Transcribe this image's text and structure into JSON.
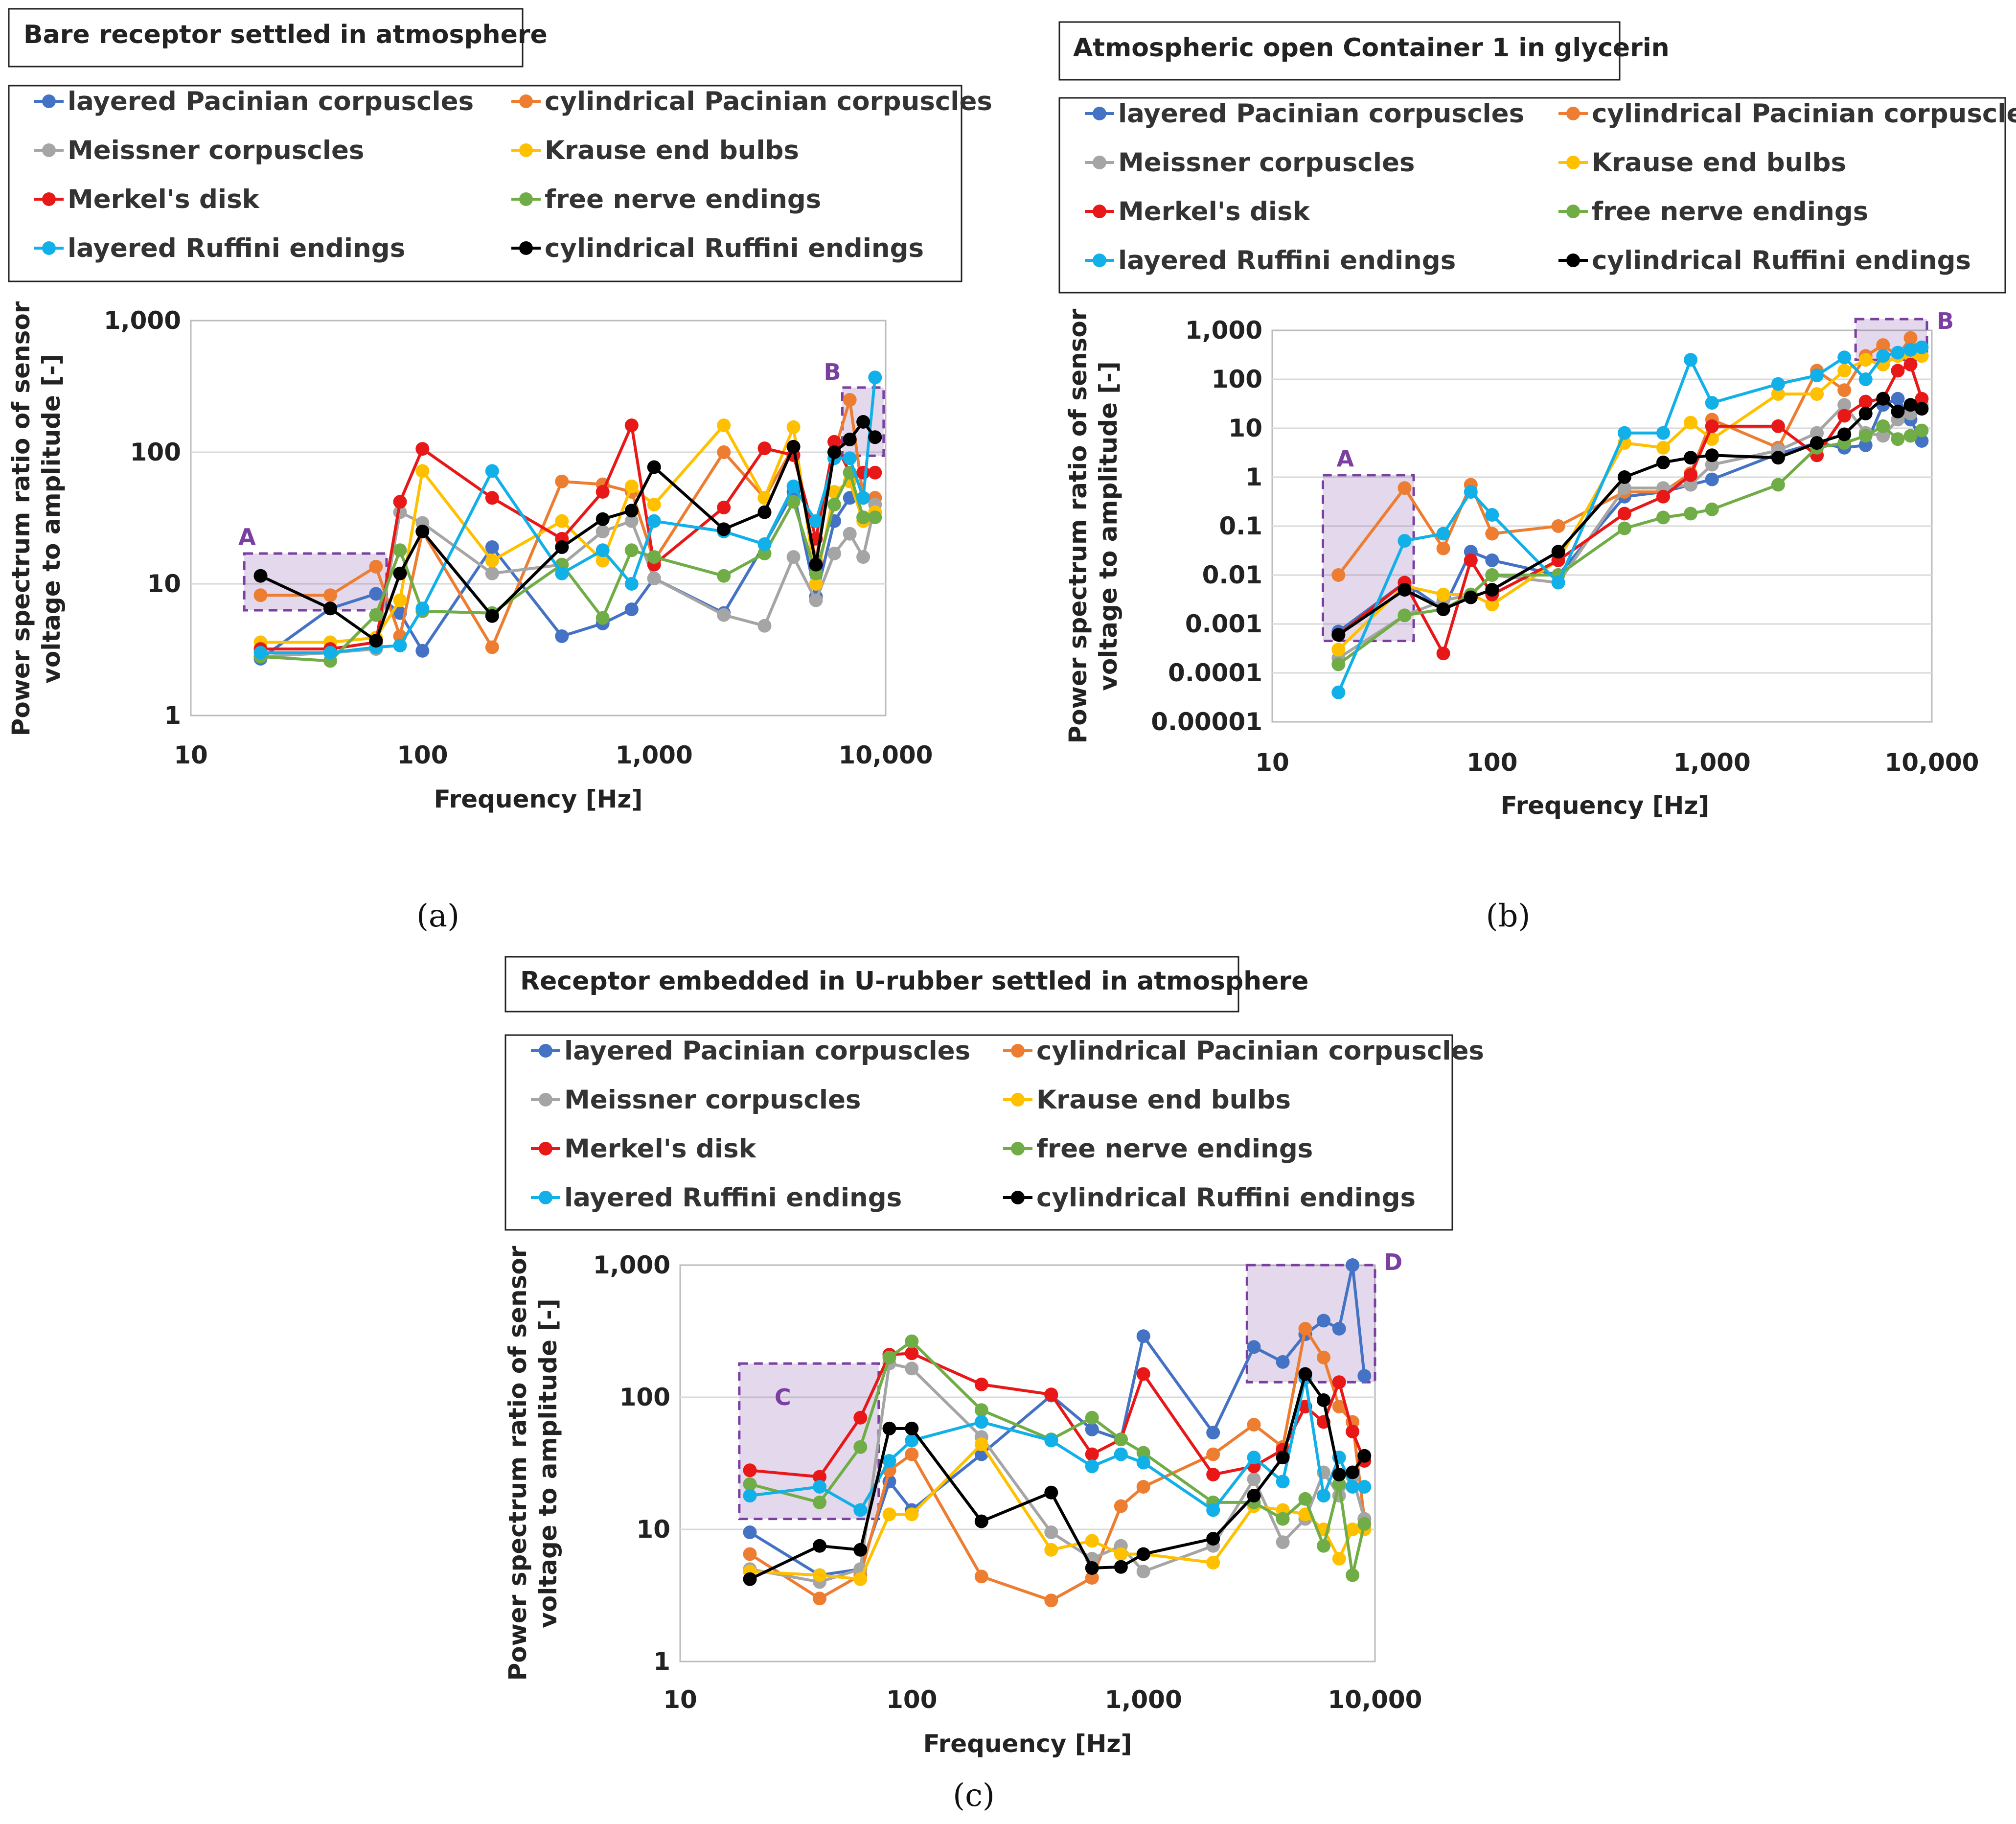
{
  "figure": {
    "panel_labels": [
      "(a)",
      "(b)",
      "(c)"
    ]
  },
  "legend_entries": [
    {
      "name": "layered Pacinian corpuscles",
      "color": "#4472c4"
    },
    {
      "name": "cylindrical Pacinian corpuscles",
      "color": "#ed7d31"
    },
    {
      "name": "Meissner corpuscles",
      "color": "#a5a5a5"
    },
    {
      "name": "Krause end bulbs",
      "color": "#ffc000"
    },
    {
      "name": "Merkel's disk",
      "color": "#e81818"
    },
    {
      "name": "free nerve endings",
      "color": "#70ad47"
    },
    {
      "name": "layered Ruffini endings",
      "color": "#12b0e8"
    },
    {
      "name": "cylindrical Ruffini endings",
      "color": "#000000"
    }
  ],
  "chart_data": [
    {
      "type": "line",
      "panel": "(a)",
      "title": "Bare receptor settled in atmosphere",
      "xlabel": "Frequency   [Hz]",
      "ylabel": "Power spectrum ratio of sensor voltage to amplitude [-]",
      "xscale": "log",
      "yscale": "log",
      "xlim": [
        10,
        10000
      ],
      "ylim": [
        1,
        1000
      ],
      "x_ticks": [
        "10",
        "100",
        "1,000",
        "10,000"
      ],
      "y_ticks": [
        "1",
        "10",
        "100",
        "1,000"
      ],
      "x": [
        20,
        40,
        63,
        80,
        100,
        200,
        400,
        600,
        800,
        1000,
        2000,
        3000,
        4000,
        5000,
        6000,
        7000,
        8000,
        9000
      ],
      "series": [
        {
          "name": "layered Pacinian corpuscles",
          "values": [
            2.7,
            6.5,
            8.4,
            6.0,
            3.1,
            19,
            4.0,
            5.0,
            6.4,
            11,
            6.0,
            20,
            50,
            8.0,
            30,
            45,
            45,
            45
          ]
        },
        {
          "name": "cylindrical Pacinian corpuscles",
          "values": [
            8.2,
            8.2,
            13.5,
            4.0,
            25,
            3.3,
            60,
            57,
            50,
            15,
            100,
            45,
            110,
            15,
            100,
            250,
            45,
            45
          ]
        },
        {
          "name": "Meissner corpuscles",
          "values": [
            2.8,
            3.0,
            3.2,
            35,
            29,
            12,
            14,
            25,
            30,
            11,
            5.8,
            4.8,
            16,
            7.5,
            17,
            24,
            16,
            40
          ]
        },
        {
          "name": "Krause end bulbs",
          "values": [
            3.6,
            3.6,
            3.9,
            7.5,
            72,
            15,
            30,
            15,
            55,
            40,
            160,
            45,
            155,
            10,
            50,
            60,
            30,
            35
          ]
        },
        {
          "name": "Merkel's disk",
          "values": [
            3.2,
            3.2,
            3.6,
            42,
            106,
            45,
            22,
            50,
            160,
            14,
            38,
            107,
            95,
            22,
            120,
            70,
            70,
            70
          ]
        },
        {
          "name": "free nerve endings",
          "values": [
            2.8,
            2.6,
            5.8,
            18,
            6.2,
            6.0,
            14,
            5.5,
            18,
            16,
            11.5,
            17,
            42,
            12,
            40,
            70,
            32,
            32
          ]
        },
        {
          "name": "layered Ruffini endings",
          "values": [
            3.0,
            3.0,
            3.3,
            3.4,
            6.5,
            72,
            12,
            18,
            10,
            30,
            25,
            20,
            55,
            30,
            90,
            90,
            45,
            370
          ]
        },
        {
          "name": "cylindrical Ruffini endings",
          "values": [
            11.5,
            6.5,
            3.7,
            12,
            25,
            5.7,
            19,
            31,
            36,
            77,
            26,
            35,
            110,
            14,
            100,
            125,
            170,
            130
          ]
        }
      ],
      "regions": [
        {
          "label": "A",
          "x_range": [
            17,
            70
          ],
          "y_range": [
            6.3,
            17
          ]
        },
        {
          "label": "B",
          "x_range": [
            6500,
            9800
          ],
          "y_range": [
            94,
            310
          ]
        }
      ]
    },
    {
      "type": "line",
      "panel": "(b)",
      "title": "Atmospheric open Container 1 in glycerin",
      "xlabel": "Frequency   [Hz]",
      "ylabel": "Power spectrum ratio of sensor voltage to amplitude [-]",
      "xscale": "log",
      "yscale": "log",
      "xlim": [
        10,
        10000
      ],
      "ylim": [
        1e-05,
        1000
      ],
      "x_ticks": [
        "10",
        "100",
        "1,000",
        "10,000"
      ],
      "y_ticks": [
        "0.00001",
        "0.0001",
        "0.001",
        "0.01",
        "0.1",
        "1",
        "10",
        "100",
        "1,000"
      ],
      "x": [
        20,
        40,
        60,
        80,
        100,
        200,
        400,
        600,
        800,
        1000,
        2000,
        3000,
        4000,
        5000,
        6000,
        7000,
        8000,
        9000
      ],
      "series": [
        {
          "name": "layered Pacinian corpuscles",
          "values": [
            0.0007,
            0.007,
            0.002,
            0.03,
            0.02,
            0.01,
            0.4,
            0.5,
            0.7,
            0.9,
            3,
            5,
            4,
            4.5,
            30,
            40,
            15,
            5.5
          ]
        },
        {
          "name": "cylindrical Pacinian corpuscles",
          "values": [
            0.01,
            0.6,
            0.035,
            0.7,
            0.07,
            0.1,
            0.5,
            0.5,
            1.2,
            15,
            4,
            150,
            60,
            300,
            500,
            300,
            700,
            300
          ]
        },
        {
          "name": "Meissner corpuscles",
          "values": [
            0.0002,
            0.0015,
            0.003,
            0.004,
            0.01,
            0.007,
            0.6,
            0.6,
            0.7,
            1.8,
            3.5,
            8,
            30,
            8,
            7,
            15,
            20,
            30
          ]
        },
        {
          "name": "Krause end bulbs",
          "values": [
            0.0003,
            0.006,
            0.004,
            0.004,
            0.0025,
            0.02,
            5,
            4,
            13,
            6,
            50,
            50,
            150,
            250,
            200,
            300,
            300,
            300
          ]
        },
        {
          "name": "Merkel's disk",
          "values": [
            0.0006,
            0.007,
            0.00025,
            0.02,
            0.004,
            0.02,
            0.18,
            0.4,
            1.1,
            11,
            11,
            2.8,
            18,
            35,
            40,
            150,
            200,
            40
          ]
        },
        {
          "name": "free nerve endings",
          "values": [
            0.00015,
            0.0015,
            0.002,
            0.004,
            0.01,
            0.01,
            0.09,
            0.15,
            0.18,
            0.22,
            0.7,
            4,
            5,
            7,
            11,
            6,
            7,
            9
          ]
        },
        {
          "name": "layered Ruffini endings",
          "values": [
            4e-05,
            0.05,
            0.07,
            0.5,
            0.17,
            0.007,
            8,
            8,
            250,
            33,
            80,
            120,
            280,
            100,
            300,
            350,
            400,
            450
          ]
        },
        {
          "name": "cylindrical Ruffini endings",
          "values": [
            0.0006,
            0.005,
            0.002,
            0.0035,
            0.005,
            0.03,
            1,
            2,
            2.5,
            2.8,
            2.5,
            5,
            7.5,
            20,
            40,
            22,
            30,
            25
          ]
        }
      ],
      "regions": [
        {
          "label": "A",
          "x_range": [
            17,
            44
          ],
          "y_range": [
            0.00045,
            1.1
          ]
        },
        {
          "label": "B",
          "x_range": [
            4500,
            9500
          ],
          "y_range": [
            250,
            1700
          ]
        }
      ]
    },
    {
      "type": "line",
      "panel": "(c)",
      "title": "Receptor embedded in U-rubber settled in atmosphere",
      "xlabel": "Frequency   [Hz]",
      "ylabel": "Power spectrum ratio of sensor voltage to amplitude [-]",
      "xscale": "log",
      "yscale": "log",
      "xlim": [
        10,
        10000
      ],
      "ylim": [
        1,
        1000
      ],
      "x_ticks": [
        "10",
        "100",
        "1,000",
        "10,000"
      ],
      "y_ticks": [
        "1",
        "10",
        "100",
        "1,000"
      ],
      "x": [
        20,
        40,
        60,
        80,
        100,
        200,
        400,
        600,
        800,
        1000,
        2000,
        3000,
        4000,
        5000,
        6000,
        7000,
        8000,
        9000
      ],
      "series": [
        {
          "name": "layered Pacinian corpuscles",
          "values": [
            9.5,
            4.5,
            5.0,
            23,
            14,
            37,
            103,
            57,
            48,
            290,
            54,
            240,
            185,
            300,
            380,
            330,
            1000,
            145
          ]
        },
        {
          "name": "cylindrical Pacinian corpuscles",
          "values": [
            6.5,
            3.0,
            4.5,
            28,
            37,
            4.4,
            2.9,
            4.3,
            15,
            21,
            37,
            62,
            42,
            330,
            200,
            85,
            65,
            12
          ]
        },
        {
          "name": "Meissner corpuscles",
          "values": [
            5.0,
            4.0,
            5.0,
            180,
            165,
            50,
            9.5,
            6.0,
            7.5,
            4.8,
            7.5,
            24,
            8.0,
            12,
            27,
            18,
            25,
            12
          ]
        },
        {
          "name": "Krause end bulbs",
          "values": [
            4.8,
            4.5,
            4.2,
            13,
            13,
            44,
            7.0,
            8.2,
            6.5,
            6.5,
            5.6,
            15,
            14,
            13,
            10,
            6.0,
            10,
            10
          ]
        },
        {
          "name": "Merkel's disk",
          "values": [
            28,
            25,
            70,
            210,
            215,
            125,
            105,
            37,
            48,
            150,
            26,
            30,
            40,
            85,
            65,
            130,
            55,
            33
          ]
        },
        {
          "name": "free nerve endings",
          "values": [
            22,
            16,
            42,
            200,
            265,
            80,
            48,
            70,
            48,
            38,
            16,
            16,
            12,
            17,
            7.5,
            22,
            4.5,
            11
          ]
        },
        {
          "name": "layered Ruffini endings",
          "values": [
            18,
            21,
            14,
            33,
            47,
            65,
            47,
            30,
            37,
            32,
            14,
            35,
            23,
            140,
            18,
            35,
            21,
            21
          ]
        },
        {
          "name": "cylindrical Ruffini endings",
          "values": [
            4.2,
            7.5,
            7.0,
            58,
            58,
            11.5,
            19,
            5.1,
            5.2,
            6.5,
            8.5,
            18,
            35,
            150,
            95,
            26,
            27,
            36
          ]
        }
      ],
      "regions": [
        {
          "label": "C",
          "x_range": [
            18,
            72
          ],
          "y_range": [
            12,
            180
          ]
        },
        {
          "label": "D",
          "x_range": [
            2800,
            10000
          ],
          "y_range": [
            130,
            1000
          ]
        }
      ]
    }
  ]
}
